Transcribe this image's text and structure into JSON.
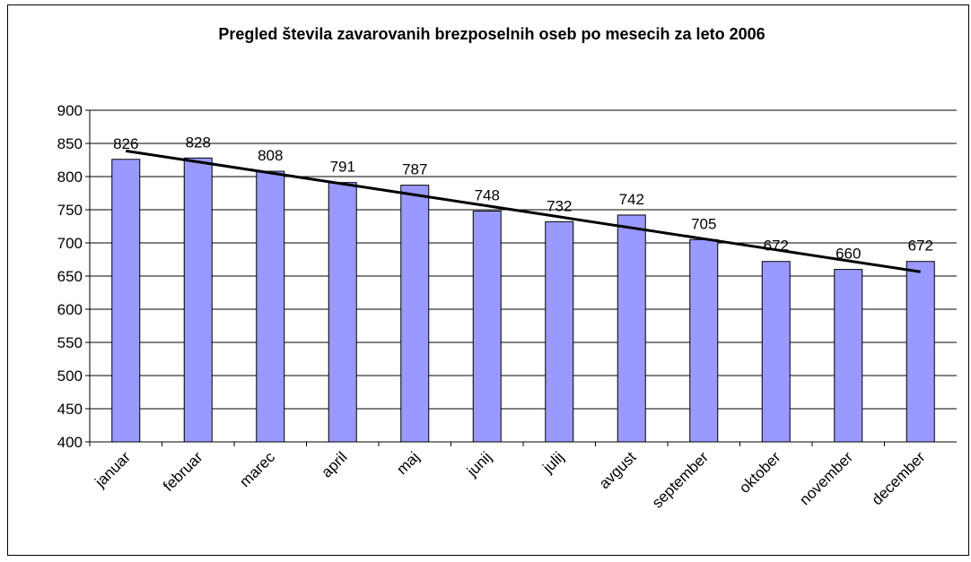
{
  "chart_data": {
    "type": "bar",
    "title": "Pregled števila zavarovanih brezposelnih oseb po mesecih za leto 2006",
    "categories": [
      "januar",
      "februar",
      "marec",
      "april",
      "maj",
      "junij",
      "julij",
      "avgust",
      "september",
      "oktober",
      "november",
      "december"
    ],
    "values": [
      826,
      828,
      808,
      791,
      787,
      748,
      732,
      742,
      705,
      672,
      660,
      672
    ],
    "color": "#9999ff",
    "ylim": [
      400,
      900
    ],
    "yticks": [
      400,
      450,
      500,
      550,
      600,
      650,
      700,
      750,
      800,
      850,
      900
    ],
    "grid": true,
    "trendline": "linear",
    "data_labels": true
  }
}
